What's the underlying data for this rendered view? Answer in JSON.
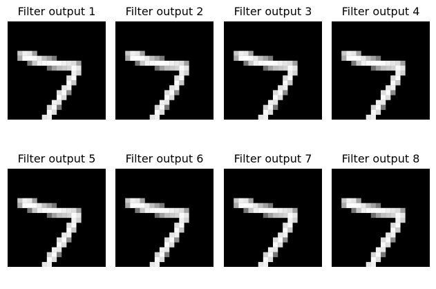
{
  "figure": {
    "background": "#ffffff",
    "panels": [
      {
        "title": "Filter output 1"
      },
      {
        "title": "Filter output 2"
      },
      {
        "title": "Filter output 3"
      },
      {
        "title": "Filter output 4"
      },
      {
        "title": "Filter output 5"
      },
      {
        "title": "Filter output 6"
      },
      {
        "title": "Filter output 7"
      },
      {
        "title": "Filter output 8"
      }
    ],
    "image_content": "handwritten-digit-seven",
    "colormap": "grayscale"
  }
}
